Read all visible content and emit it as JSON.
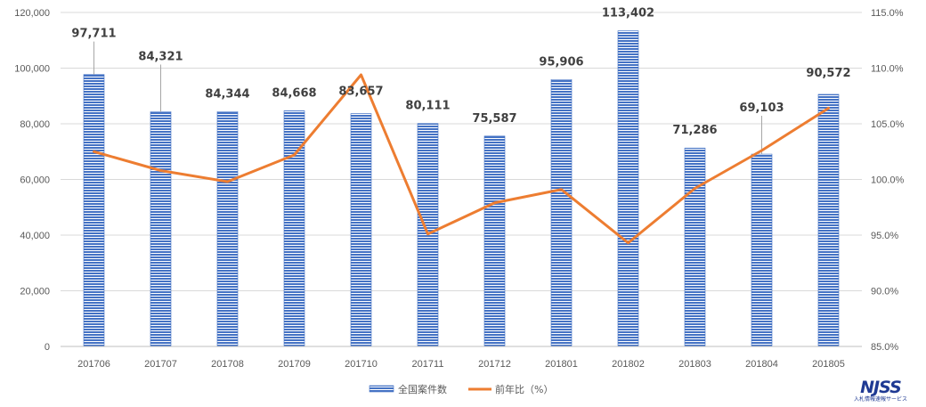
{
  "chart_data": {
    "type": "bar",
    "categories": [
      "201706",
      "201707",
      "201708",
      "201709",
      "201710",
      "201711",
      "201712",
      "201801",
      "201802",
      "201803",
      "201804",
      "201805"
    ],
    "series": [
      {
        "name": "全国案件数",
        "chart_type": "bar",
        "axis": "left",
        "values": [
          97711,
          84321,
          84344,
          84668,
          83657,
          80111,
          75587,
          95906,
          113402,
          71286,
          69103,
          90572
        ],
        "labels": [
          "97,711",
          "84,321",
          "84,344",
          "84,668",
          "83,657",
          "80,111",
          "75,587",
          "95,906",
          "113,402",
          "71,286",
          "69,103",
          "90,572"
        ],
        "color": "#4472c4"
      },
      {
        "name": "前年比（%）",
        "chart_type": "line",
        "axis": "right",
        "values": [
          102.5,
          100.8,
          99.8,
          102.2,
          109.4,
          95.1,
          97.9,
          99.1,
          94.3,
          99.2,
          102.6,
          106.4
        ],
        "color": "#ed7d31"
      }
    ],
    "y_left": {
      "ylim": [
        0,
        120000
      ],
      "ticks": [
        "0",
        "20,000",
        "40,000",
        "60,000",
        "80,000",
        "100,000",
        "120,000"
      ]
    },
    "y_right": {
      "ylim": [
        85,
        115
      ],
      "ticks": [
        "85.0%",
        "90.0%",
        "95.0%",
        "100.0%",
        "105.0%",
        "110.0%",
        "115.0%"
      ]
    },
    "grid": true,
    "legend_position": "bottom"
  },
  "logo": {
    "main": "NJSS",
    "sub": "入札情報速報サービス"
  }
}
